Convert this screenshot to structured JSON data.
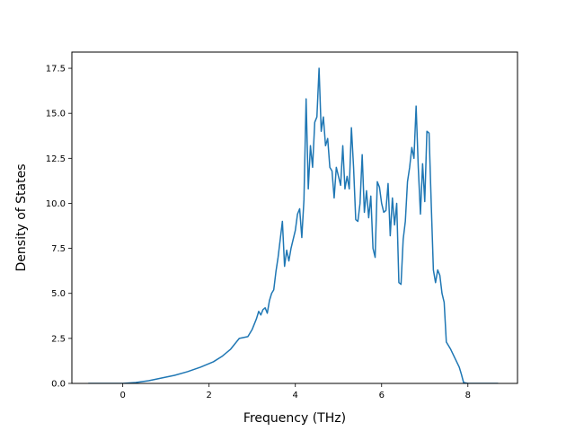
{
  "chart_data": {
    "type": "line",
    "title": "",
    "xlabel": "Frequency (THz)",
    "ylabel": "Density of States",
    "xlim": [
      -1.18,
      9.15
    ],
    "ylim": [
      0,
      18.4
    ],
    "xticks": [
      {
        "value": 0,
        "label": "0"
      },
      {
        "value": 2,
        "label": "2"
      },
      {
        "value": 4,
        "label": "4"
      },
      {
        "value": 6,
        "label": "6"
      },
      {
        "value": 8,
        "label": "8"
      }
    ],
    "yticks": [
      {
        "value": 0,
        "label": "0.0"
      },
      {
        "value": 2.5,
        "label": "2.5"
      },
      {
        "value": 5,
        "label": "5.0"
      },
      {
        "value": 7.5,
        "label": "7.5"
      },
      {
        "value": 10,
        "label": "10.0"
      },
      {
        "value": 12.5,
        "label": "12.5"
      },
      {
        "value": 15,
        "label": "15.0"
      },
      {
        "value": 17.5,
        "label": "17.5"
      }
    ],
    "grid": false,
    "legend": "none",
    "series": [
      {
        "color": "#1f77b4",
        "x": [
          -0.8,
          -0.4,
          0,
          0.3,
          0.6,
          0.9,
          1.2,
          1.5,
          1.8,
          1.95,
          2.1,
          2.3,
          2.5,
          2.6,
          2.7,
          2.9,
          3.0,
          3.1,
          3.15,
          3.2,
          3.25,
          3.3,
          3.35,
          3.4,
          3.45,
          3.5,
          3.55,
          3.6,
          3.65,
          3.7,
          3.75,
          3.8,
          3.85,
          3.9,
          4.0,
          4.05,
          4.1,
          4.15,
          4.2,
          4.25,
          4.3,
          4.35,
          4.4,
          4.45,
          4.5,
          4.55,
          4.6,
          4.65,
          4.7,
          4.75,
          4.8,
          4.85,
          4.9,
          4.95,
          5.0,
          5.05,
          5.1,
          5.15,
          5.2,
          5.25,
          5.3,
          5.35,
          5.4,
          5.45,
          5.5,
          5.55,
          5.6,
          5.65,
          5.7,
          5.75,
          5.8,
          5.85,
          5.9,
          5.95,
          6.0,
          6.05,
          6.1,
          6.15,
          6.2,
          6.25,
          6.3,
          6.35,
          6.4,
          6.45,
          6.5,
          6.55,
          6.6,
          6.65,
          6.7,
          6.75,
          6.8,
          6.85,
          6.9,
          6.95,
          7.0,
          7.05,
          7.1,
          7.15,
          7.2,
          7.25,
          7.3,
          7.35,
          7.4,
          7.45,
          7.5,
          7.6,
          7.7,
          7.8,
          7.85,
          7.9,
          8.0,
          8.7
        ],
        "y": [
          0,
          0,
          0,
          0.05,
          0.15,
          0.3,
          0.45,
          0.65,
          0.9,
          1.05,
          1.2,
          1.5,
          1.9,
          2.2,
          2.5,
          2.6,
          3.0,
          3.6,
          4.0,
          3.8,
          4.1,
          4.2,
          3.9,
          4.6,
          5.0,
          5.2,
          6.2,
          7.0,
          8.0,
          9.0,
          6.5,
          7.4,
          6.8,
          7.5,
          8.5,
          9.4,
          9.7,
          8.1,
          10.2,
          15.8,
          10.8,
          13.2,
          12.0,
          14.5,
          14.8,
          17.5,
          14.0,
          14.8,
          13.2,
          13.6,
          12.0,
          11.8,
          10.3,
          12.0,
          11.5,
          11.0,
          13.2,
          10.8,
          11.5,
          10.8,
          14.2,
          12.0,
          9.1,
          9.0,
          10.0,
          12.7,
          9.5,
          10.7,
          9.2,
          10.4,
          7.5,
          7.0,
          11.2,
          10.9,
          10.0,
          9.5,
          9.6,
          11.1,
          8.2,
          10.3,
          8.8,
          10.0,
          5.6,
          5.5,
          8.0,
          9.0,
          11.2,
          12.0,
          13.1,
          12.5,
          15.4,
          12.0,
          9.4,
          12.2,
          10.1,
          14.0,
          13.9,
          10.0,
          6.3,
          5.6,
          6.3,
          6.0,
          5.0,
          4.5,
          2.3,
          1.9,
          1.4,
          0.9,
          0.5,
          0.05,
          0,
          0
        ]
      }
    ]
  }
}
